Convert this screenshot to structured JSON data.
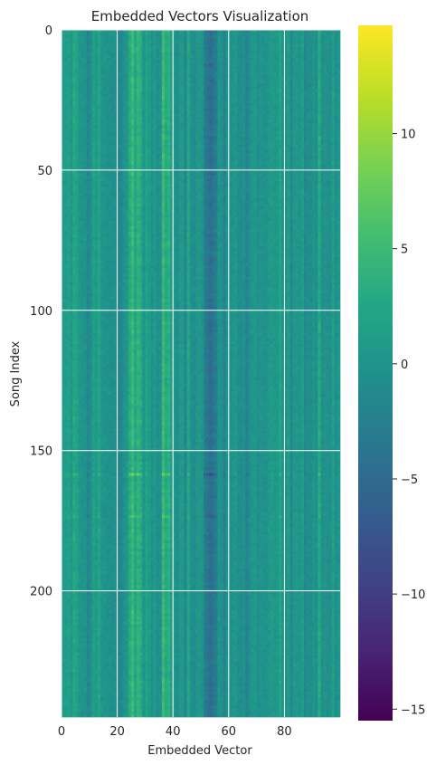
{
  "chart_data": {
    "type": "heatmap",
    "title": "Embedded Vectors Visualization",
    "xlabel": "Embedded Vector",
    "ylabel": "Song Index",
    "rows": 245,
    "cols": 100,
    "xlim": [
      0,
      100
    ],
    "ylim": [
      245,
      0
    ],
    "x_ticks": [
      0,
      20,
      40,
      60,
      80
    ],
    "y_ticks": [
      0,
      50,
      100,
      150,
      200
    ],
    "colorbar": {
      "colormap": "viridis",
      "vmin": -15.5,
      "vmax": 14.7,
      "ticks": [
        10,
        5,
        0,
        -5,
        -10,
        -15
      ],
      "tick_labels": [
        "10",
        "5",
        "0",
        "−5",
        "−10",
        "−15"
      ]
    },
    "grid": true,
    "grid_color": "#ffffff",
    "column_profile": {
      "note_free_values": true,
      "cols": [
        0,
        2,
        4,
        5,
        9,
        11,
        13,
        20,
        24,
        25,
        26,
        27,
        28,
        30,
        36,
        37,
        38,
        44,
        45,
        51,
        52,
        53,
        54,
        55,
        58,
        66,
        78,
        92
      ],
      "means": [
        1.2,
        1.8,
        2.6,
        2.0,
        -1.5,
        1.5,
        2.2,
        -2.0,
        3.0,
        4.5,
        2.5,
        4.0,
        3.0,
        2.0,
        4.6,
        2.8,
        3.5,
        -1.6,
        2.4,
        -2.8,
        -3.5,
        -4.5,
        -3.6,
        -2.6,
        -1.8,
        -1.8,
        2.2,
        3.0
      ]
    },
    "highlight_rows": {
      "rows": [
        158,
        173,
        51,
        146
      ],
      "scales": [
        1.9,
        1.5,
        1.25,
        1.2
      ]
    }
  }
}
